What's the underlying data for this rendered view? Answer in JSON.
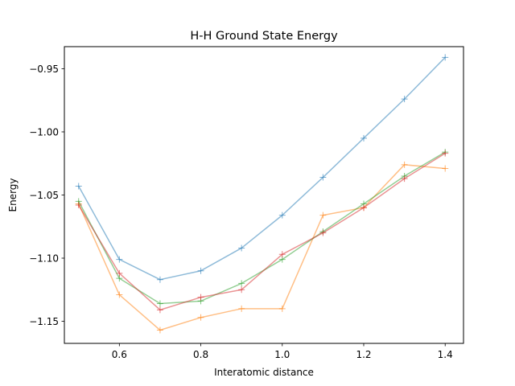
{
  "chart_data": {
    "type": "line",
    "title": "H-H Ground State Energy",
    "xlabel": "Interatomic distance",
    "ylabel": "Energy",
    "xlim": [
      0.465,
      1.445
    ],
    "ylim": [
      -1.1675,
      -0.9325
    ],
    "xticks": [
      0.6,
      0.8,
      1.0,
      1.2,
      1.4
    ],
    "xtick_labels": [
      "0.6",
      "0.8",
      "1.0",
      "1.2",
      "1.4"
    ],
    "yticks": [
      -1.15,
      -1.1,
      -1.05,
      -1.0,
      -0.95
    ],
    "ytick_labels": [
      "−1.15",
      "−1.10",
      "−1.05",
      "−1.00",
      "−0.95"
    ],
    "grid": false,
    "marker": "+",
    "x": [
      0.5,
      0.6,
      0.7,
      0.8,
      0.9,
      1.0,
      1.1,
      1.2,
      1.3,
      1.4
    ],
    "series": [
      {
        "color": "#1f77b4",
        "values": [
          -1.043,
          -1.101,
          -1.117,
          -1.11,
          -1.092,
          -1.066,
          -1.036,
          -1.005,
          -0.974,
          -0.941
        ]
      },
      {
        "color": "#ff7f0e",
        "values": [
          -1.057,
          -1.129,
          -1.157,
          -1.147,
          -1.14,
          -1.14,
          -1.066,
          -1.06,
          -1.026,
          -1.029
        ]
      },
      {
        "color": "#2ca02c",
        "values": [
          -1.055,
          -1.116,
          -1.136,
          -1.134,
          -1.12,
          -1.101,
          -1.079,
          -1.057,
          -1.035,
          -1.016
        ]
      },
      {
        "color": "#d62728",
        "values": [
          -1.058,
          -1.112,
          -1.141,
          -1.131,
          -1.125,
          -1.097,
          -1.08,
          -1.06,
          -1.037,
          -1.017
        ]
      }
    ]
  }
}
